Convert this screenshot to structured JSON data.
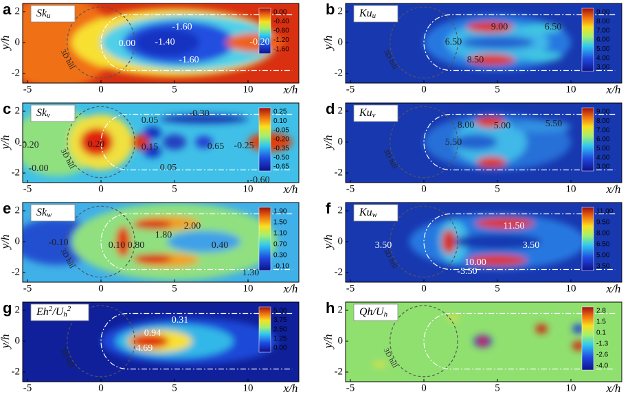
{
  "xticks": [
    -5,
    0,
    5,
    10
  ],
  "yticks": [
    -2,
    0,
    2
  ],
  "xlabel": "x/h",
  "ylabel": "y/h",
  "hill_label": "3D hill",
  "panels": [
    {
      "letter": "a",
      "title": [
        {
          "text": "Sk"
        },
        {
          "text": "u",
          "pos": "sub"
        }
      ],
      "colorbar": [
        "0.00",
        "-0.40",
        "-0.80",
        "-1.20",
        "-1.60"
      ],
      "annotations": [
        "-1.60",
        "0.00",
        "-1.40",
        "-1.60",
        "-0.20"
      ]
    },
    {
      "letter": "b",
      "title": [
        {
          "text": "Ku"
        },
        {
          "text": "u",
          "pos": "sub"
        }
      ],
      "colorbar": [
        "9.00",
        "8.00",
        "7.00",
        "6.00",
        "5.00",
        "4.00",
        "3.00"
      ],
      "annotations": [
        "9.00",
        "6.50",
        "6.50",
        "8.50"
      ]
    },
    {
      "letter": "c",
      "title": [
        {
          "text": "Sk"
        },
        {
          "text": "v",
          "pos": "sub"
        }
      ],
      "colorbar": [
        "0.25",
        "0.10",
        "-0.05",
        "-0.20",
        "-0.35",
        "-0.50",
        "-0.65"
      ],
      "annotations": [
        "-0.30",
        "0.05",
        "-0.20",
        "0.20",
        "0.15",
        "0.65",
        "-0.25",
        "-0.00",
        "0.05",
        "-0.60"
      ]
    },
    {
      "letter": "d",
      "title": [
        {
          "text": "Ku"
        },
        {
          "text": "v",
          "pos": "sub"
        }
      ],
      "colorbar": [
        "9.00",
        "8.00",
        "7.00",
        "6.00",
        "5.00",
        "4.00",
        "3.00"
      ],
      "annotations": [
        "8.00",
        "5.00",
        "5.50",
        "5.50"
      ]
    },
    {
      "letter": "e",
      "title": [
        {
          "text": "Sk"
        },
        {
          "text": "w",
          "pos": "sub"
        }
      ],
      "colorbar": [
        "1.90",
        "1.50",
        "1.10",
        "0.70",
        "0.30",
        "-0.10"
      ],
      "annotations": [
        "2.00",
        "1.80",
        "-0.10",
        "0.10",
        "0.80",
        "0.40",
        "1.30"
      ]
    },
    {
      "letter": "f",
      "title": [
        {
          "text": "Ku"
        },
        {
          "text": "w",
          "pos": "sub"
        }
      ],
      "colorbar": [
        "11.00",
        "9.50",
        "8.00",
        "6.50",
        "5.00",
        "3.50"
      ],
      "annotations": [
        "11.50",
        "3.50",
        "3.50",
        "10.00",
        "-3.50"
      ]
    },
    {
      "letter": "g",
      "title": [
        {
          "text": "Eh"
        },
        {
          "text": "2",
          "pos": "sup"
        },
        {
          "text": "/U"
        },
        {
          "text": "h",
          "pos": "sub"
        },
        {
          "text": "2",
          "pos": "sup"
        }
      ],
      "colorbar": [
        "5.00",
        "3.75",
        "2.50",
        "1.25",
        "0.00"
      ],
      "annotations": [
        "0.31",
        "0.94",
        "4.69"
      ]
    },
    {
      "letter": "h",
      "title": [
        {
          "text": "Qh/U"
        },
        {
          "text": "h",
          "pos": "sub"
        }
      ],
      "colorbar": [
        "2.8",
        "1.5",
        "0.1",
        "-1.3",
        "-2.6",
        "-4.0"
      ],
      "annotations": []
    }
  ]
}
